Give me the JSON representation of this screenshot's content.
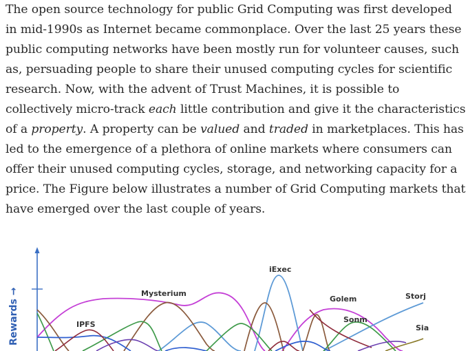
{
  "article": {
    "lines": [
      [
        {
          "t": "The open source technology for public Grid Computing was first developed"
        }
      ],
      [
        {
          "t": "in mid-1990s as Internet became commonplace. Over the last 25 years these"
        }
      ],
      [
        {
          "t": "public computing networks have been mostly run for volunteer causes, such"
        }
      ],
      [
        {
          "t": "as, persuading people to share their unused computing cycles for scientific"
        }
      ],
      [
        {
          "t": "research. Now, with the advent of Trust Machines, it is possible to"
        }
      ],
      [
        {
          "t": "collectively micro-track "
        },
        {
          "t": "each",
          "em": true
        },
        {
          "t": " little contribution and give it the characteristics"
        }
      ],
      [
        {
          "t": "of a "
        },
        {
          "t": "property",
          "em": true
        },
        {
          "t": ". A property can be "
        },
        {
          "t": "valued",
          "em": true
        },
        {
          "t": " and "
        },
        {
          "t": "traded",
          "em": true
        },
        {
          "t": " in marketplaces. This has"
        }
      ],
      [
        {
          "t": "led to the emergence of a plethora of online markets where consumers can"
        }
      ],
      [
        {
          "t": "offer their unused computing cycles, storage, and networking capacity for a"
        }
      ],
      [
        {
          "t": "price. The Figure below illustrates a number of Grid Computing markets that"
        }
      ],
      [
        {
          "t": "have emerged over the last couple of years."
        }
      ]
    ]
  },
  "figure": {
    "y_axis_label": "Rewards →",
    "markets": [
      {
        "key": "iexec",
        "label": "iExec"
      },
      {
        "key": "mysterium",
        "label": "Mysterium"
      },
      {
        "key": "golem",
        "label": "Golem"
      },
      {
        "key": "storj",
        "label": "Storj"
      },
      {
        "key": "ipfs",
        "label": "IPFS"
      },
      {
        "key": "sonm",
        "label": "Sonm"
      },
      {
        "key": "sia",
        "label": "Sia"
      }
    ],
    "colors": {
      "axis": "#3a6fc4",
      "magenta": "#c43fd6",
      "brown": "#8a5a3c",
      "lightblue": "#5d9ad6",
      "green": "#3f9a4a",
      "blue": "#2f5fd0",
      "darkred": "#8e2a3a",
      "purple": "#6a3fb0",
      "olive": "#8a7a2a"
    }
  }
}
